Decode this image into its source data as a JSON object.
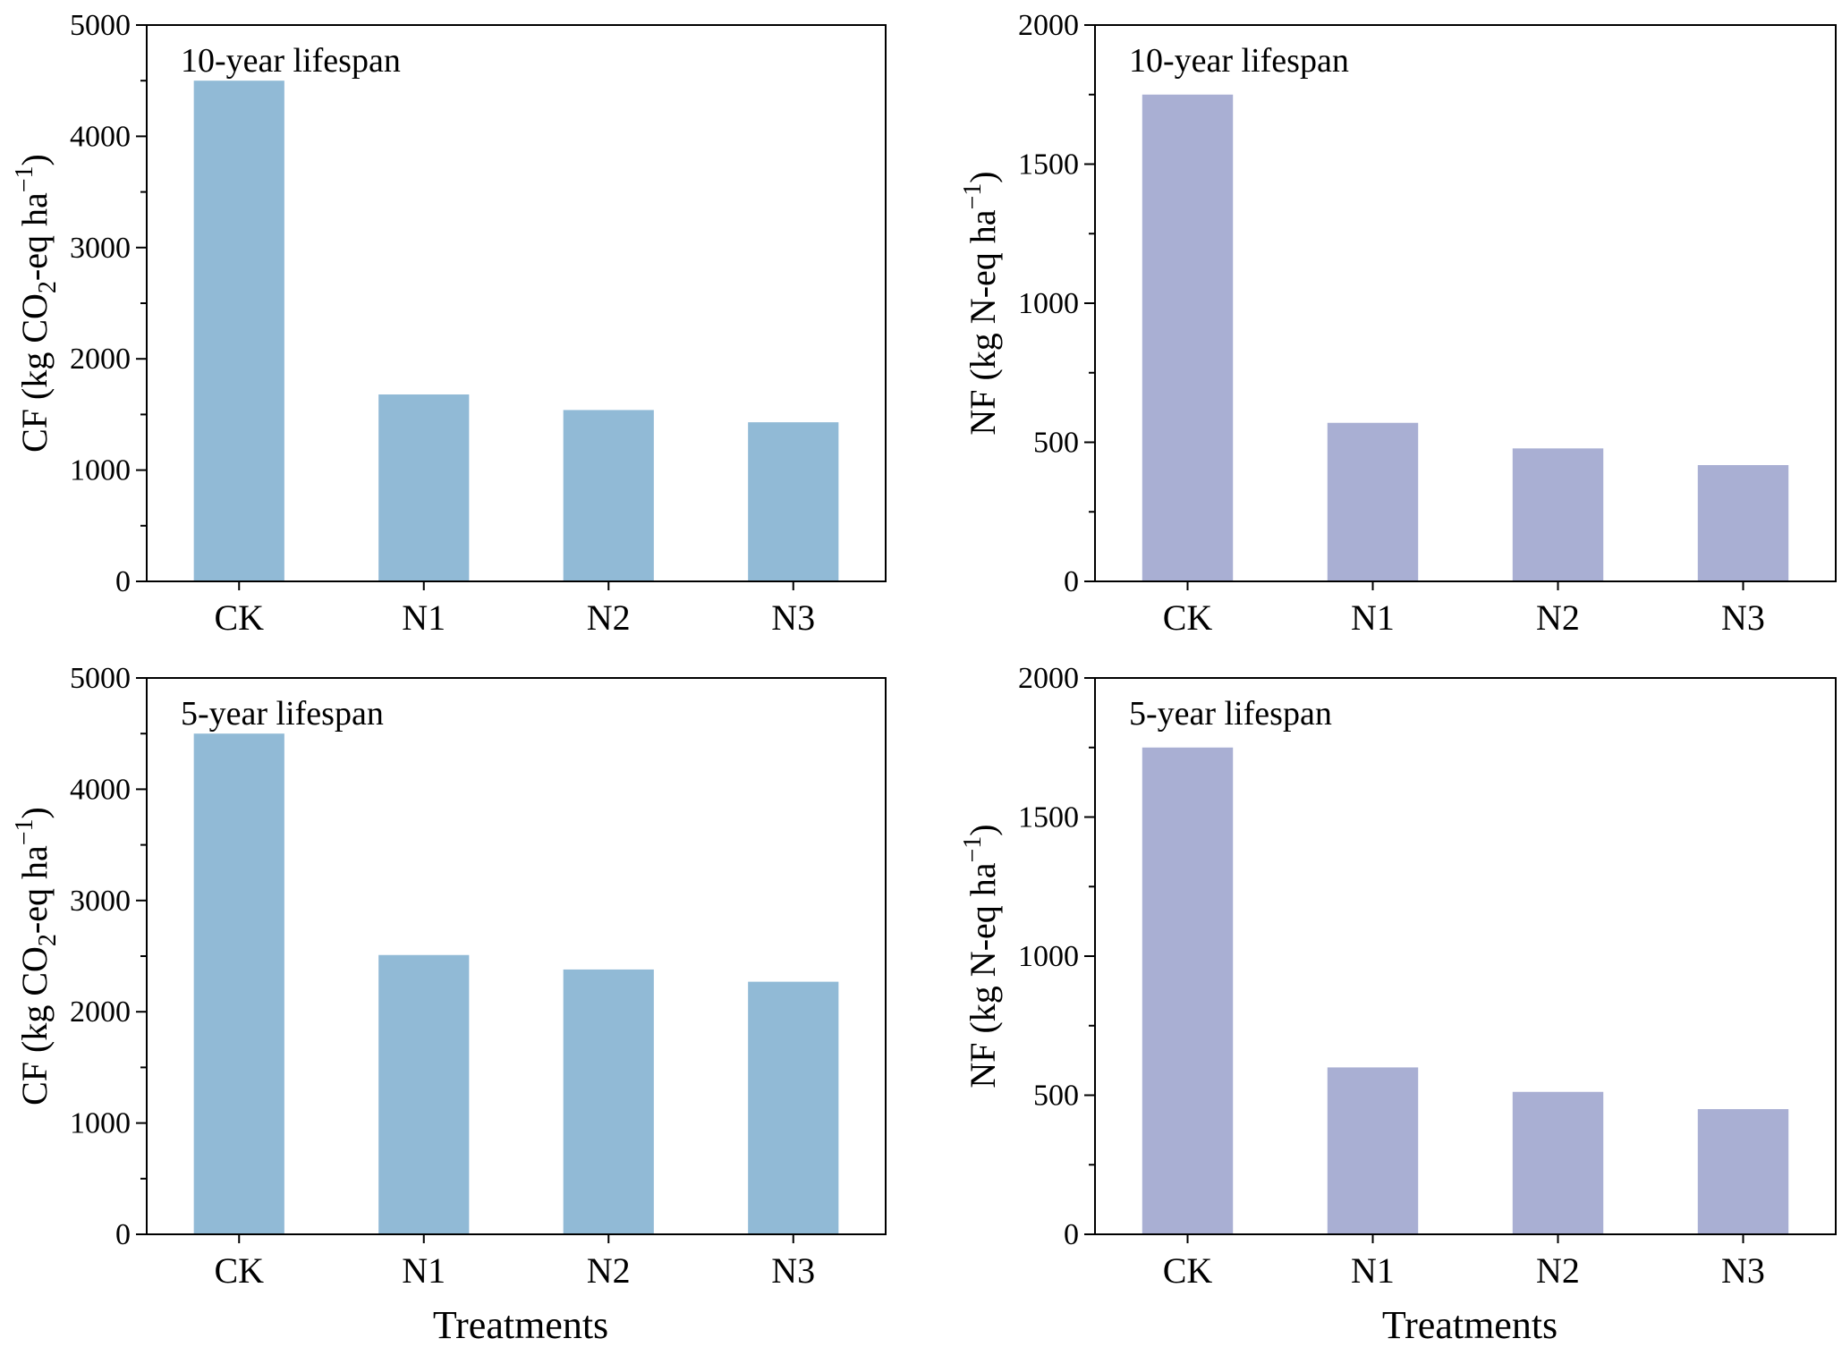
{
  "chart_data": [
    {
      "type": "bar",
      "annotation": "10-year lifespan",
      "categories": [
        "CK",
        "N1",
        "N2",
        "N3"
      ],
      "values": [
        4500,
        1680,
        1540,
        1430
      ],
      "ylabel": {
        "pre": "CF (kg CO",
        "sub": "2",
        "mid": "-eq ha",
        "sup": "−1",
        "post": ")"
      },
      "xlabel": "",
      "ylim": [
        0,
        5000
      ],
      "yticks": [
        0,
        1000,
        2000,
        3000,
        4000,
        5000
      ],
      "bar_color": "#91BAD6"
    },
    {
      "type": "bar",
      "annotation": "10-year lifespan",
      "categories": [
        "CK",
        "N1",
        "N2",
        "N3"
      ],
      "values": [
        1750,
        570,
        478,
        418
      ],
      "ylabel": {
        "pre": "NF (kg N-eq ha",
        "sub": "",
        "mid": "",
        "sup": "−1",
        "post": ")"
      },
      "xlabel": "",
      "ylim": [
        0,
        2000
      ],
      "yticks": [
        0,
        500,
        1000,
        1500,
        2000
      ],
      "bar_color": "#A9AFD3"
    },
    {
      "type": "bar",
      "annotation": "5-year lifespan",
      "categories": [
        "CK",
        "N1",
        "N2",
        "N3"
      ],
      "values": [
        4500,
        2510,
        2380,
        2270
      ],
      "ylabel": {
        "pre": "CF (kg CO",
        "sub": "2",
        "mid": "-eq ha",
        "sup": "−1",
        "post": ")"
      },
      "xlabel": "Treatments",
      "ylim": [
        0,
        5000
      ],
      "yticks": [
        0,
        1000,
        2000,
        3000,
        4000,
        5000
      ],
      "bar_color": "#91BAD6"
    },
    {
      "type": "bar",
      "annotation": "5-year lifespan",
      "categories": [
        "CK",
        "N1",
        "N2",
        "N3"
      ],
      "values": [
        1750,
        600,
        512,
        450
      ],
      "ylabel": {
        "pre": "NF (kg N-eq ha",
        "sub": "",
        "mid": "",
        "sup": "−1",
        "post": ")"
      },
      "xlabel": "Treatments",
      "ylim": [
        0,
        2000
      ],
      "yticks": [
        0,
        500,
        1000,
        1500,
        2000
      ],
      "bar_color": "#A9AFD3"
    }
  ]
}
